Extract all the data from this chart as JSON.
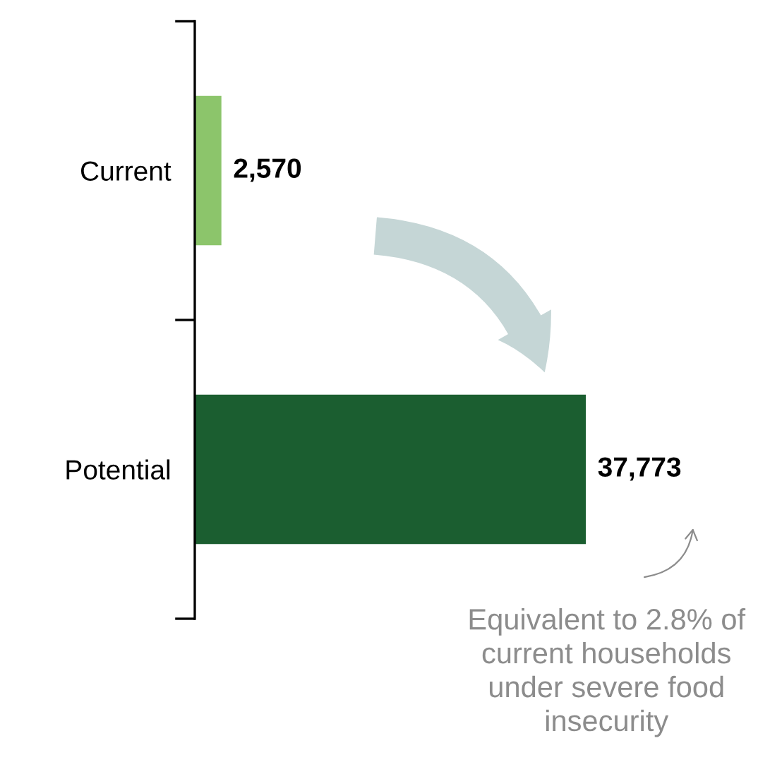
{
  "chart_data": {
    "type": "bar",
    "orientation": "horizontal",
    "categories": [
      "Current",
      "Potential"
    ],
    "values": [
      2570,
      37773
    ],
    "colors": [
      "#8cc56b",
      "#1b5e30"
    ],
    "value_labels": [
      "2,570",
      "37,773"
    ],
    "annotations": [
      "Equivalent to 2.8% of current households under severe food insecurity"
    ],
    "grid": false,
    "legend": false
  }
}
